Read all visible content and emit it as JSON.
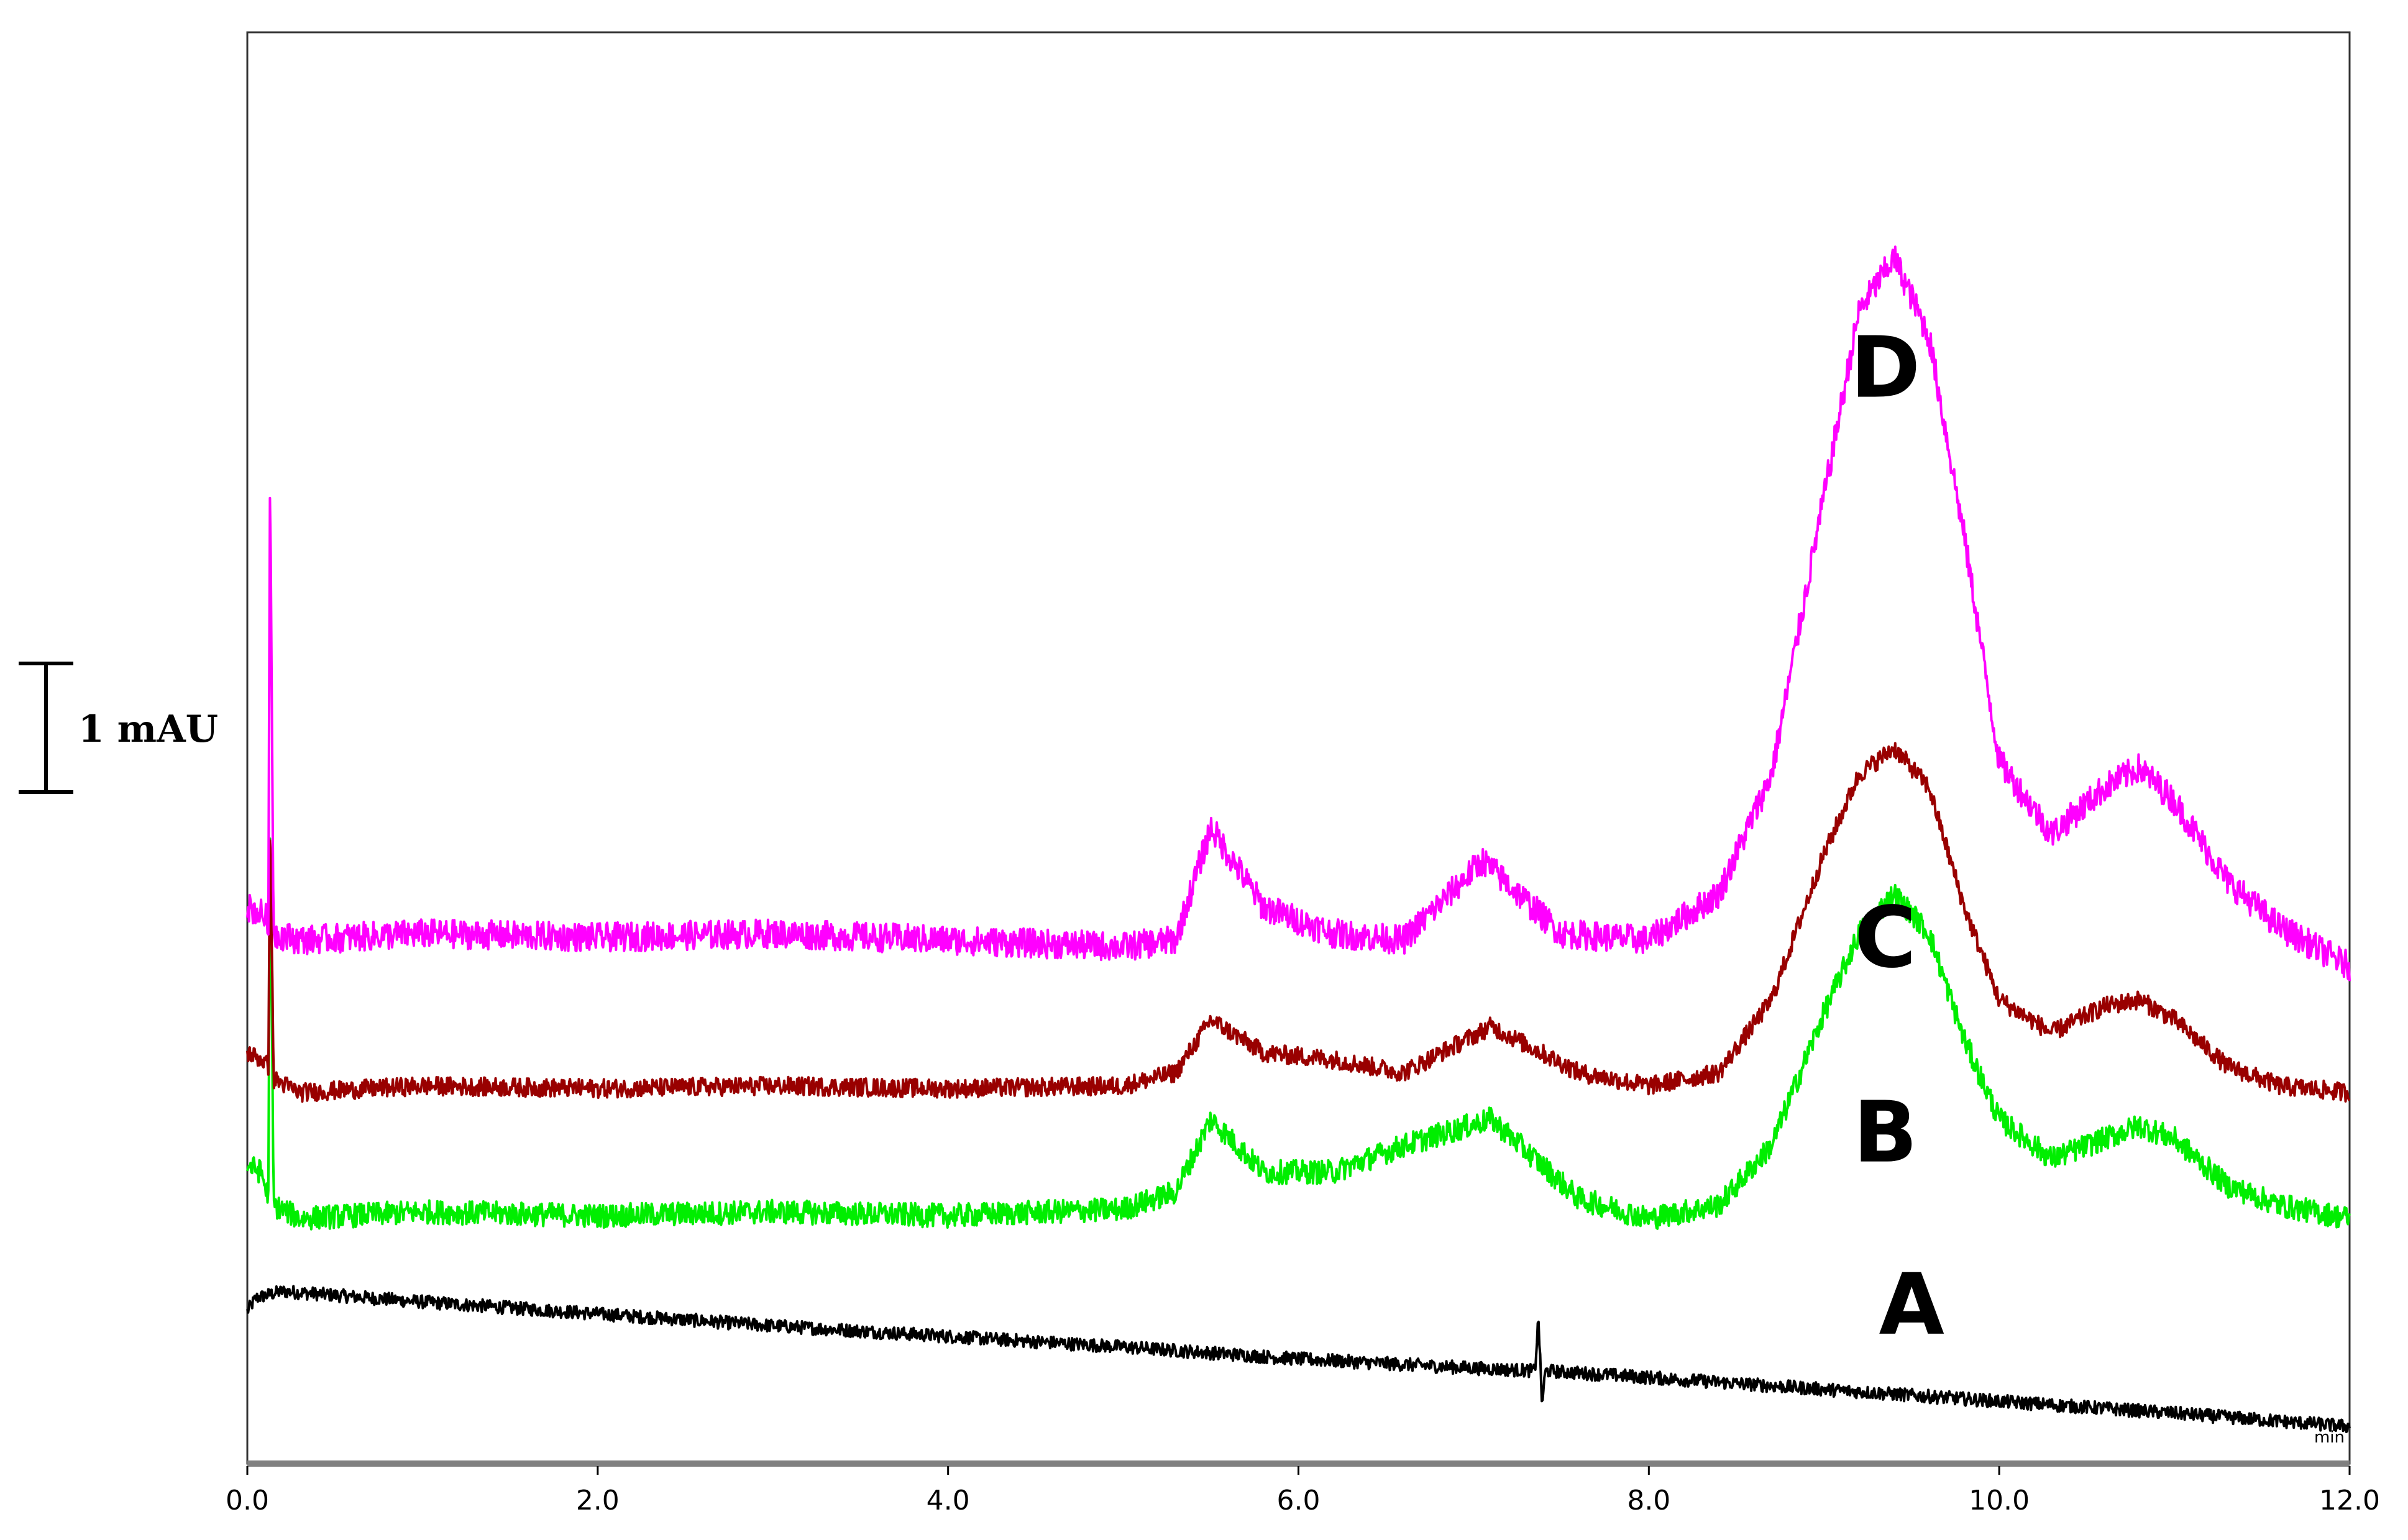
{
  "chart_data": {
    "type": "line",
    "title": "",
    "xlabel": "min",
    "ylabel": "",
    "xlim": [
      0.0,
      12.0
    ],
    "ylim": [
      0.0,
      10.8
    ],
    "grid": false,
    "x_ticks": [
      "0.0",
      "2.0",
      "4.0",
      "6.0",
      "8.0",
      "10.0",
      "12.0"
    ],
    "scale_bar": {
      "label": "1 mAU",
      "value": 1.0
    },
    "series": [
      {
        "name": "A",
        "color": "#000000",
        "noise": 0.05,
        "x": [
          0.0,
          0.05,
          0.2,
          1.0,
          2.0,
          3.0,
          4.0,
          5.0,
          6.0,
          7.0,
          7.35,
          7.37,
          7.39,
          7.41,
          8.0,
          9.0,
          10.0,
          11.0,
          12.0
        ],
        "y": [
          1.15,
          1.25,
          1.3,
          1.22,
          1.13,
          1.04,
          0.96,
          0.88,
          0.79,
          0.72,
          0.7,
          1.1,
          0.45,
          0.7,
          0.65,
          0.56,
          0.47,
          0.38,
          0.28
        ]
      },
      {
        "name": "B",
        "color": "#00ee00",
        "noise": 0.09,
        "x": [
          0.0,
          0.08,
          0.12,
          0.13,
          0.15,
          0.3,
          1.0,
          2.0,
          3.0,
          4.0,
          5.0,
          5.3,
          5.5,
          5.8,
          6.2,
          6.6,
          7.1,
          7.6,
          8.0,
          8.4,
          8.7,
          9.0,
          9.2,
          9.4,
          9.6,
          9.8,
          10.0,
          10.3,
          10.6,
          10.8,
          11.0,
          11.3,
          11.6,
          12.0
        ],
        "y": [
          2.25,
          2.2,
          2.0,
          4.9,
          1.95,
          1.85,
          1.9,
          1.87,
          1.9,
          1.87,
          1.92,
          2.05,
          2.6,
          2.2,
          2.2,
          2.4,
          2.6,
          2.0,
          1.85,
          1.95,
          2.4,
          3.4,
          4.0,
          4.3,
          4.0,
          3.2,
          2.6,
          2.3,
          2.45,
          2.55,
          2.45,
          2.1,
          1.95,
          1.85
        ]
      },
      {
        "name": "C",
        "color": "#990000",
        "noise": 0.07,
        "x": [
          0.0,
          0.08,
          0.12,
          0.13,
          0.15,
          0.3,
          1.0,
          2.0,
          3.0,
          4.0,
          5.0,
          5.3,
          5.5,
          5.8,
          6.2,
          6.6,
          7.1,
          7.6,
          8.0,
          8.4,
          8.7,
          9.0,
          9.2,
          9.4,
          9.6,
          9.8,
          10.0,
          10.3,
          10.6,
          10.8,
          11.0,
          11.3,
          11.6,
          12.0
        ],
        "y": [
          3.1,
          3.05,
          3.0,
          4.9,
          2.9,
          2.8,
          2.85,
          2.83,
          2.85,
          2.83,
          2.85,
          2.95,
          3.35,
          3.1,
          3.05,
          2.95,
          3.3,
          2.95,
          2.85,
          2.95,
          3.5,
          4.6,
          5.2,
          5.4,
          5.1,
          4.2,
          3.5,
          3.25,
          3.45,
          3.5,
          3.35,
          3.0,
          2.85,
          2.8
        ]
      },
      {
        "name": "D",
        "color": "#ff00ff",
        "noise": 0.11,
        "x": [
          0.0,
          0.08,
          0.12,
          0.13,
          0.15,
          0.3,
          1.0,
          2.0,
          3.0,
          4.0,
          5.0,
          5.3,
          5.5,
          5.8,
          6.2,
          6.6,
          7.05,
          7.5,
          8.0,
          8.4,
          8.7,
          9.0,
          9.2,
          9.4,
          9.6,
          9.8,
          10.0,
          10.3,
          10.6,
          10.8,
          11.0,
          11.3,
          11.6,
          12.0
        ],
        "y": [
          4.2,
          4.15,
          4.1,
          7.5,
          4.0,
          3.95,
          4.0,
          3.97,
          4.0,
          3.95,
          3.9,
          3.95,
          4.8,
          4.2,
          4.0,
          3.95,
          4.55,
          4.0,
          3.95,
          4.3,
          5.2,
          7.3,
          8.7,
          9.1,
          8.5,
          7.0,
          5.3,
          4.75,
          5.1,
          5.25,
          5.0,
          4.4,
          4.05,
          3.75
        ]
      }
    ]
  }
}
